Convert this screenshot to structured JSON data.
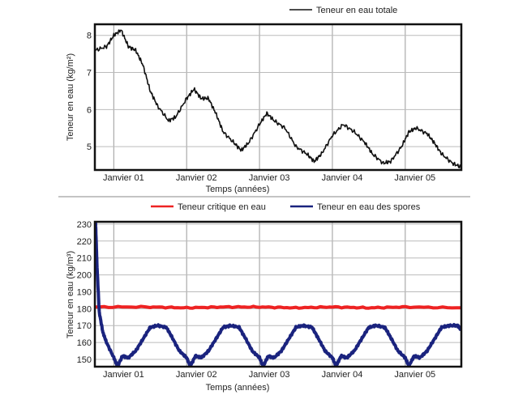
{
  "chart_data": [
    {
      "type": "line",
      "xlabel": "Temps (années)",
      "ylabel": "Teneur en eau (kg/m²)",
      "xlim": [
        -0.26,
        4.77
      ],
      "ylim": [
        4.37,
        8.3
      ],
      "xticks": [
        {
          "v": 0,
          "label": "Janvier 01"
        },
        {
          "v": 1,
          "label": "Janvier 02"
        },
        {
          "v": 2,
          "label": "Janvier 03"
        },
        {
          "v": 3,
          "label": "Janvier 04"
        },
        {
          "v": 4,
          "label": "Janvier 05"
        }
      ],
      "yticks": [
        {
          "v": 5,
          "label": "5"
        },
        {
          "v": 6,
          "label": "6"
        },
        {
          "v": 7,
          "label": "7"
        },
        {
          "v": 8,
          "label": "8"
        }
      ],
      "grid": true,
      "legend_position": "top-right",
      "series": [
        {
          "name": "Teneur en eau totale",
          "color": "#111111",
          "x": [
            -0.25,
            -0.1,
            0,
            0.1,
            0.2,
            0.3,
            0.4,
            0.5,
            0.6,
            0.75,
            0.85,
            1.0,
            1.1,
            1.2,
            1.3,
            1.4,
            1.5,
            1.65,
            1.75,
            1.85,
            2.0,
            2.1,
            2.2,
            2.35,
            2.5,
            2.65,
            2.75,
            2.85,
            3.0,
            3.15,
            3.3,
            3.45,
            3.55,
            3.7,
            3.8,
            3.95,
            4.05,
            4.15,
            4.3,
            4.4,
            4.5,
            4.65,
            4.76
          ],
          "y": [
            7.6,
            7.7,
            8.0,
            8.15,
            7.7,
            7.6,
            7.2,
            6.5,
            6.1,
            5.7,
            5.8,
            6.3,
            6.55,
            6.3,
            6.3,
            5.9,
            5.4,
            5.1,
            4.9,
            5.1,
            5.6,
            5.9,
            5.7,
            5.5,
            5.0,
            4.8,
            4.6,
            4.8,
            5.3,
            5.6,
            5.4,
            5.1,
            4.8,
            4.55,
            4.6,
            5.0,
            5.4,
            5.5,
            5.35,
            5.1,
            4.8,
            4.55,
            4.45
          ]
        }
      ]
    },
    {
      "type": "line",
      "xlabel": "Temps (années)",
      "ylabel": "Teneur en eau (kg/m³)",
      "xlim": [
        -0.26,
        4.77
      ],
      "ylim": [
        145.7,
        231.4
      ],
      "xticks": [
        {
          "v": 0,
          "label": "Janvier 01"
        },
        {
          "v": 1,
          "label": "Janvier 02"
        },
        {
          "v": 2,
          "label": "Janvier 03"
        },
        {
          "v": 3,
          "label": "Janvier 04"
        },
        {
          "v": 4,
          "label": "Janvier 05"
        }
      ],
      "yticks": [
        {
          "v": 150,
          "label": "150"
        },
        {
          "v": 160,
          "label": "160"
        },
        {
          "v": 170,
          "label": "170"
        },
        {
          "v": 180,
          "label": "180"
        },
        {
          "v": 190,
          "label": "190"
        },
        {
          "v": 200,
          "label": "200"
        },
        {
          "v": 210,
          "label": "210"
        },
        {
          "v": 220,
          "label": "220"
        },
        {
          "v": 230,
          "label": "230"
        }
      ],
      "grid": true,
      "legend_position": "top",
      "series": [
        {
          "name": "Teneur critique en eau",
          "color": "#ee2222",
          "x": [
            -0.26,
            0.5,
            1.0,
            1.5,
            2.0,
            2.5,
            3.0,
            3.5,
            4.0,
            4.77
          ],
          "y": [
            181,
            181,
            180.5,
            181,
            181,
            180.5,
            181,
            180.5,
            181,
            180.5
          ]
        },
        {
          "name": "Teneur en eau des spores",
          "color": "#1a237e",
          "x": [
            -0.25,
            -0.23,
            -0.2,
            -0.15,
            -0.1,
            0,
            0.05,
            0.12,
            0.2,
            0.3,
            0.4,
            0.5,
            0.6,
            0.72,
            0.8,
            0.9,
            1.0,
            1.05,
            1.12,
            1.2,
            1.3,
            1.4,
            1.5,
            1.6,
            1.72,
            1.8,
            1.9,
            2.0,
            2.05,
            2.12,
            2.2,
            2.3,
            2.4,
            2.5,
            2.6,
            2.72,
            2.8,
            2.9,
            3.0,
            3.05,
            3.12,
            3.2,
            3.3,
            3.4,
            3.5,
            3.6,
            3.72,
            3.8,
            3.9,
            4.0,
            4.05,
            4.12,
            4.2,
            4.3,
            4.4,
            4.5,
            4.6,
            4.72,
            4.76
          ],
          "y": [
            231,
            205,
            178,
            166,
            160,
            151,
            146,
            152,
            151,
            155,
            162,
            169,
            170,
            169,
            163,
            155,
            151,
            146,
            152,
            151,
            155,
            162,
            169,
            170,
            169,
            163,
            155,
            151,
            146,
            152,
            151,
            155,
            162,
            169,
            170,
            169,
            163,
            155,
            151,
            146,
            152,
            151,
            155,
            162,
            169,
            170,
            169,
            163,
            155,
            151,
            146,
            152,
            151,
            155,
            162,
            169,
            170,
            170,
            168
          ]
        }
      ]
    }
  ]
}
